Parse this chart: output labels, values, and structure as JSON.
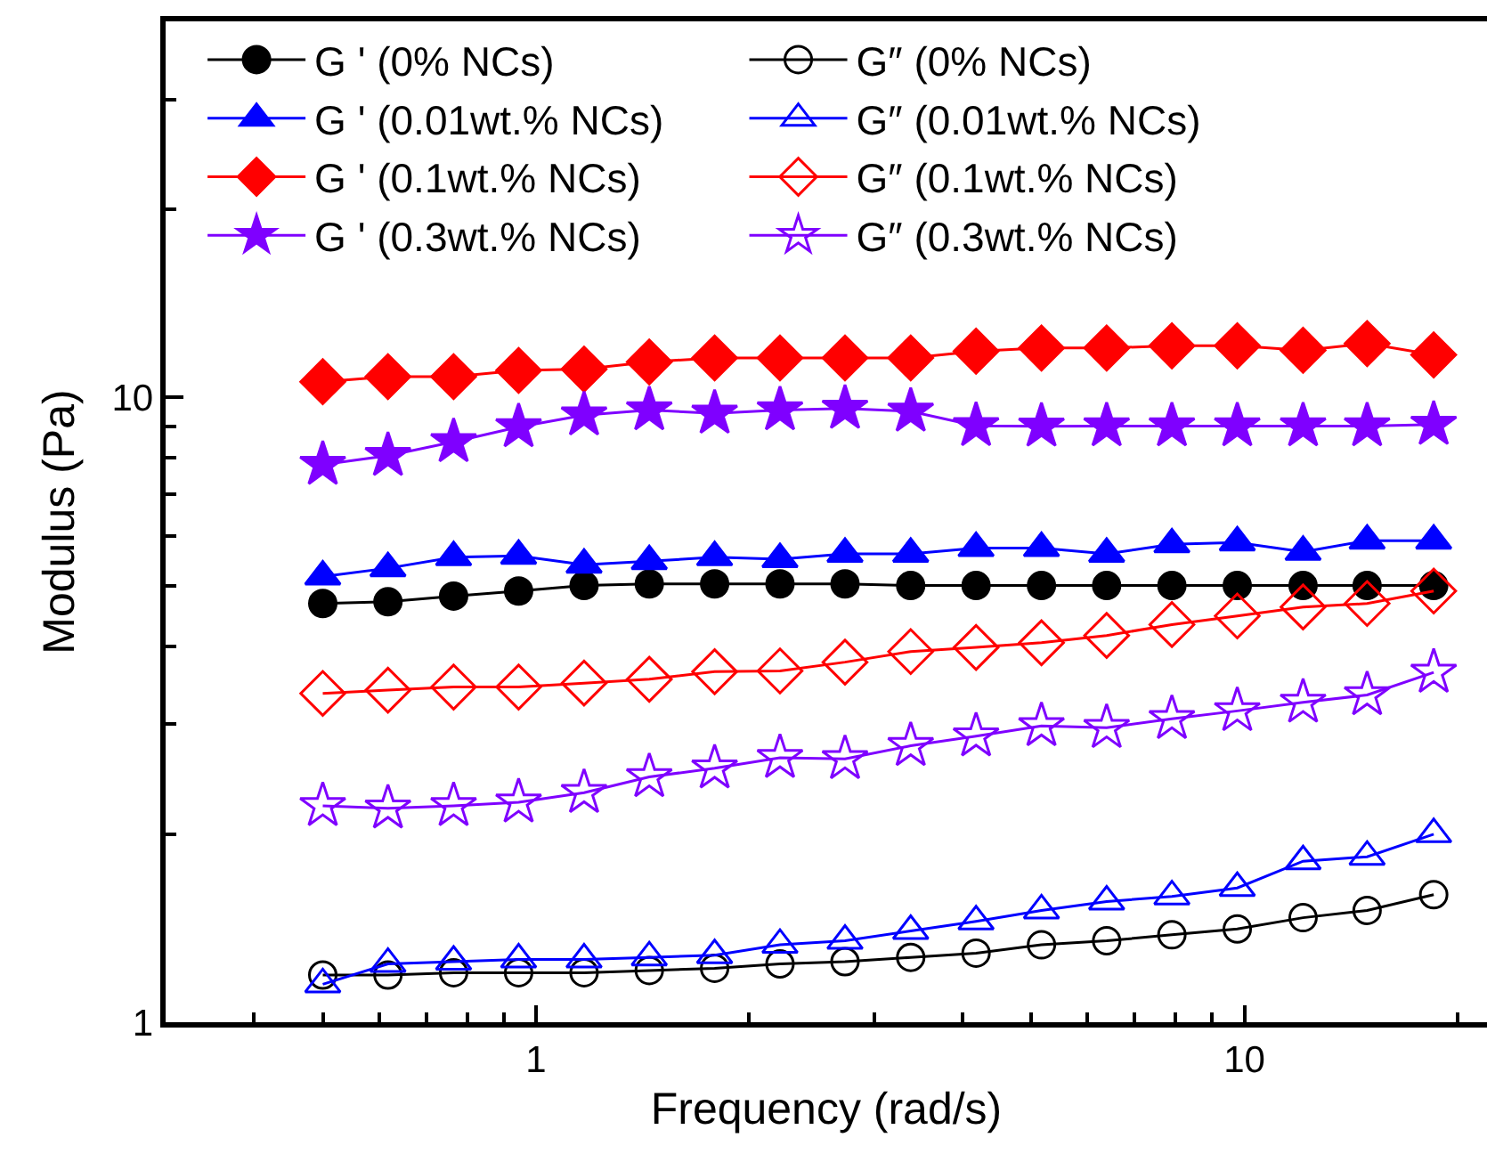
{
  "chart_data": {
    "type": "line",
    "xlabel": "Frequency (rad/s)",
    "ylabel": "Modulus (Pa)",
    "log": "xy",
    "x": [
      0.5,
      0.618,
      0.765,
      0.945,
      1.169,
      1.445,
      1.787,
      2.21,
      2.73,
      3.38,
      4.18,
      5.17,
      6.39,
      7.9,
      9.77,
      12.1,
      14.9,
      18.5
    ],
    "xlim": [
      0.3,
      22
    ],
    "ylim": [
      1,
      40
    ],
    "xticks": [
      {
        "value": 0.3,
        "label": null
      },
      {
        "value": 0.4,
        "label": null
      },
      {
        "value": 0.5,
        "label": null
      },
      {
        "value": 0.6,
        "label": null
      },
      {
        "value": 0.7,
        "label": null
      },
      {
        "value": 0.8,
        "label": null
      },
      {
        "value": 0.9,
        "label": null
      },
      1,
      {
        "value": 2,
        "label": null
      },
      {
        "value": 3,
        "label": null
      },
      {
        "value": 4,
        "label": null
      },
      {
        "value": 5,
        "label": null
      },
      {
        "value": 6,
        "label": null
      },
      {
        "value": 7,
        "label": null
      },
      {
        "value": 8,
        "label": null
      },
      {
        "value": 9,
        "label": null
      },
      10,
      {
        "value": 20,
        "label": null
      }
    ],
    "yticks": [
      1,
      {
        "value": 2,
        "label": null
      },
      {
        "value": 3,
        "label": null
      },
      {
        "value": 4,
        "label": null
      },
      {
        "value": 5,
        "label": null
      },
      {
        "value": 6,
        "label": null
      },
      {
        "value": 7,
        "label": null
      },
      {
        "value": 8,
        "label": null
      },
      {
        "value": 9,
        "label": null
      },
      10,
      {
        "value": 20,
        "label": null
      },
      {
        "value": 30,
        "label": null
      }
    ],
    "legend": "top left",
    "line_style": "solid",
    "series": [
      {
        "name": "G ' (0% NCs)",
        "color": "#000000",
        "marker": "circle",
        "values": [
          4.68,
          4.71,
          4.81,
          4.9,
          5.0,
          5.03,
          5.03,
          5.03,
          5.03,
          5.0,
          5.0,
          5.0,
          5.0,
          5.0,
          5.0,
          5.0,
          5.0,
          5.0
        ]
      },
      {
        "name": "G″ (0% NCs)",
        "color": "#000000",
        "marker": "circle-open",
        "values": [
          1.19,
          1.19,
          1.2,
          1.2,
          1.2,
          1.21,
          1.22,
          1.24,
          1.25,
          1.27,
          1.29,
          1.33,
          1.35,
          1.38,
          1.41,
          1.47,
          1.51,
          1.6
        ]
      },
      {
        "name": "G ' (0.01wt.% NCs)",
        "color": "#0000ff",
        "marker": "triangle",
        "values": [
          5.17,
          5.33,
          5.55,
          5.58,
          5.4,
          5.47,
          5.55,
          5.51,
          5.62,
          5.62,
          5.74,
          5.74,
          5.62,
          5.82,
          5.86,
          5.66,
          5.9,
          5.9
        ]
      },
      {
        "name": "G″ (0.01wt.% NCs)",
        "color": "#0000ff",
        "marker": "triangle-open",
        "values": [
          1.15,
          1.24,
          1.25,
          1.26,
          1.26,
          1.27,
          1.28,
          1.33,
          1.35,
          1.4,
          1.45,
          1.51,
          1.56,
          1.59,
          1.64,
          1.81,
          1.84,
          2.0
        ]
      },
      {
        "name": "G ' (0.1wt.% NCs)",
        "color": "#ff0000",
        "marker": "diamond",
        "values": [
          10.6,
          10.8,
          10.8,
          11.05,
          11.1,
          11.4,
          11.57,
          11.57,
          11.57,
          11.57,
          11.86,
          12.0,
          12.0,
          12.1,
          12.1,
          11.9,
          12.2,
          11.7
        ]
      },
      {
        "name": "G″ (0.1wt.% NCs)",
        "color": "#ff0000",
        "marker": "diamond-open",
        "values": [
          3.36,
          3.4,
          3.44,
          3.44,
          3.49,
          3.54,
          3.64,
          3.65,
          3.77,
          3.92,
          3.98,
          4.05,
          4.16,
          4.33,
          4.47,
          4.62,
          4.68,
          4.9
        ]
      },
      {
        "name": "G ' (0.3wt.% NCs)",
        "color": "#7f00ff",
        "marker": "star",
        "values": [
          7.81,
          8.07,
          8.49,
          8.97,
          9.37,
          9.55,
          9.43,
          9.55,
          9.6,
          9.5,
          9.01,
          8.99,
          9.0,
          9.0,
          9.0,
          9.0,
          9.0,
          9.05
        ]
      },
      {
        "name": "G″ (0.3wt.% NCs)",
        "color": "#7f00ff",
        "marker": "star-open",
        "values": [
          2.22,
          2.2,
          2.22,
          2.25,
          2.33,
          2.47,
          2.55,
          2.65,
          2.64,
          2.77,
          2.87,
          2.98,
          2.96,
          3.06,
          3.15,
          3.25,
          3.34,
          3.63
        ]
      }
    ]
  }
}
